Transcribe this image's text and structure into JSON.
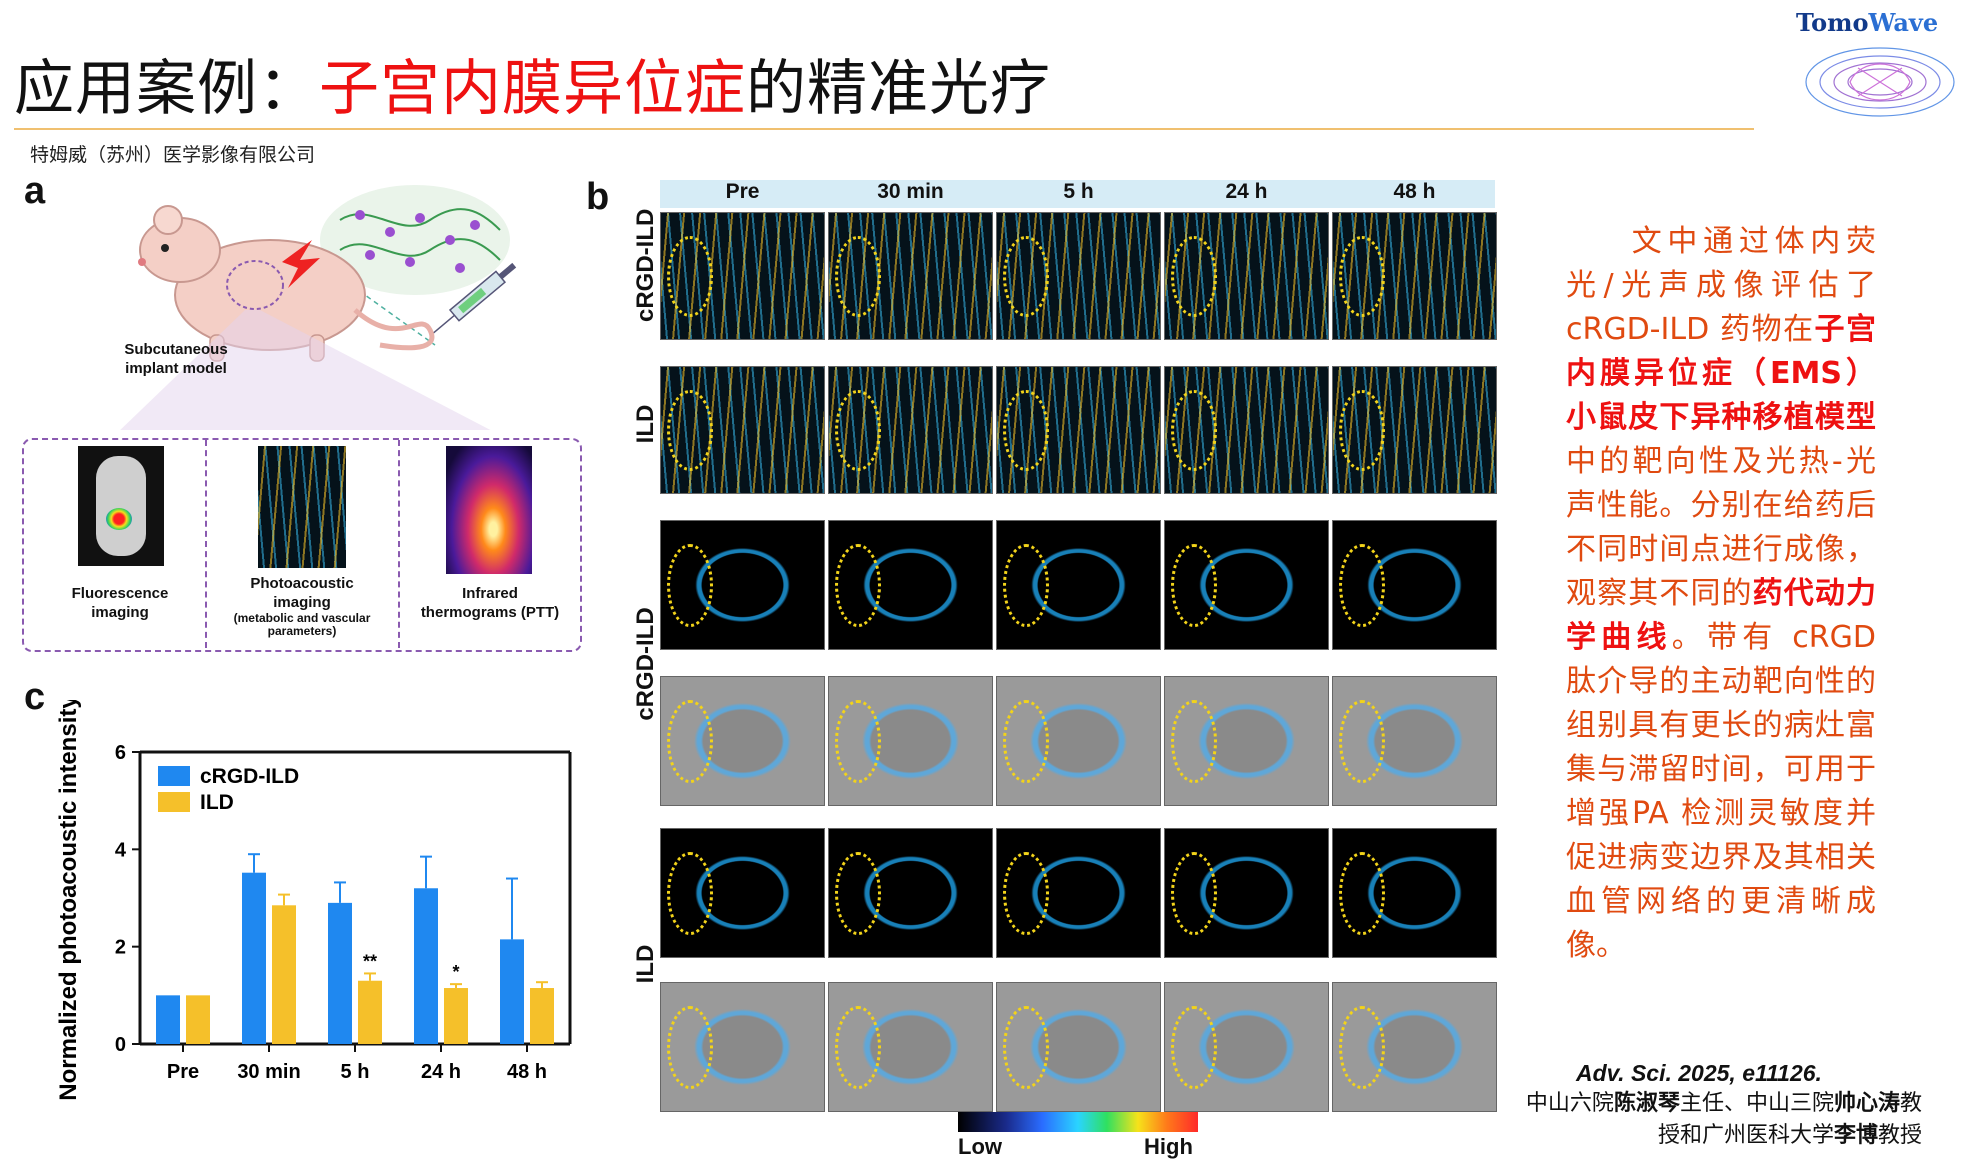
{
  "header": {
    "title_prefix": "应用案例：",
    "title_highlight": "子宫内膜异位症",
    "title_suffix": "的精准光疗",
    "company": "特姆威（苏州）医学影像有限公司",
    "logo_name_part1": "Tomo",
    "logo_name_part2": "Wave"
  },
  "panel_a": {
    "letter": "a",
    "model_label_line1": "Subcutaneous",
    "model_label_line2": "implant model",
    "imaging": [
      {
        "line1": "Fluorescence",
        "line2": "imaging",
        "sub": ""
      },
      {
        "line1": "Photoacoustic",
        "line2": "imaging",
        "sub": "(metabolic and vascular parameters)"
      },
      {
        "line1": "Infrared",
        "line2": "thermograms (PTT)",
        "sub": ""
      }
    ]
  },
  "panel_b": {
    "letter": "b",
    "columns": [
      "Pre",
      "30 min",
      "5 h",
      "24 h",
      "48 h"
    ],
    "row_groups": [
      "cRGD-ILD",
      "ILD",
      "cRGD-ILD",
      "ILD"
    ],
    "colorbar_low": "Low",
    "colorbar_high": "High"
  },
  "panel_c": {
    "letter": "c"
  },
  "chart_data": {
    "type": "bar",
    "categories": [
      "Pre",
      "30 min",
      "5 h",
      "24 h",
      "48 h"
    ],
    "series": [
      {
        "name": "cRGD-ILD",
        "values": [
          1.0,
          3.52,
          2.9,
          3.2,
          2.15
        ],
        "errors": [
          0,
          0.38,
          0.42,
          0.65,
          1.25
        ],
        "color": "#1f88f0"
      },
      {
        "name": "ILD",
        "values": [
          1.0,
          2.85,
          1.3,
          1.15,
          1.15
        ],
        "errors": [
          0,
          0.22,
          0.15,
          0.08,
          0.12
        ],
        "color": "#f5c02a"
      }
    ],
    "significance": [
      "",
      "",
      "**",
      "*",
      ""
    ],
    "ylabel": "Normalized photoacoustic intensity",
    "ylim": [
      0,
      6
    ],
    "yticks": [
      0,
      2,
      4,
      6
    ],
    "legend": "top-left"
  },
  "description": {
    "segments": [
      {
        "text": "文中通过体内荧光/光声成像评估了",
        "bold": false
      },
      {
        "text": "cRGD-ILD",
        "bold": false
      },
      {
        "text": " 药物在",
        "bold": false
      },
      {
        "text": "子宫内膜异位症（EMS）小鼠皮下异种移植模型",
        "bold": true
      },
      {
        "text": "中的靶向性及光热-光声性能。分别在给药后不同时间点进行成像，观察其不同的",
        "bold": false
      },
      {
        "text": "药代动力学曲线",
        "bold": true
      },
      {
        "text": "。带有 cRGD 肽介导的主动靶向性的组别具有更长的病灶富集与滞留时间，可用于增强PA 检测灵敏度并促进病变边界及其相关血管网络的更清晰成像。",
        "bold": false
      }
    ]
  },
  "reference": {
    "citation": "Adv. Sci. 2025, e11126.",
    "authors_part1": "中山六院",
    "author1": "陈淑琴",
    "authors_part2": "主任、中山三院",
    "author2": "帅心涛",
    "authors_part3": "教授和广州医科大学",
    "author3": "李博",
    "authors_part4": "教授"
  },
  "colors": {
    "accent_red": "#ee1111",
    "text_orange_red": "#e04a10",
    "rule": "#f0c070",
    "series_blue": "#1f88f0",
    "series_yellow": "#f5c02a"
  }
}
